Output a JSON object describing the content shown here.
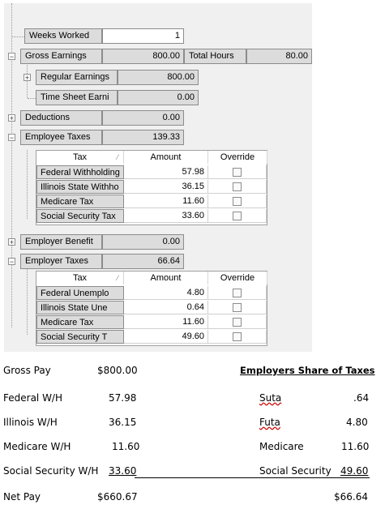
{
  "tree": {
    "weeks_worked": {
      "label": "Weeks Worked",
      "value": "1"
    },
    "gross_earnings": {
      "label": "Gross Earnings",
      "value": "800.00",
      "total_hours_label": "Total Hours",
      "total_hours_value": "80.00"
    },
    "regular_earnings": {
      "label": "Regular Earnings",
      "value": "800.00"
    },
    "time_sheet": {
      "label": "Time Sheet Earni",
      "value": "0.00"
    },
    "deductions": {
      "label": "Deductions",
      "value": "0.00"
    },
    "employee_taxes": {
      "label": "Employee Taxes",
      "value": "139.33"
    },
    "employee_grid": {
      "headers": [
        "Tax",
        "Amount",
        "Override"
      ],
      "rows": [
        {
          "name": "Federal Withholding",
          "amount": "57.98"
        },
        {
          "name": "Illinois State Withho",
          "amount": "36.15"
        },
        {
          "name": "Medicare Tax",
          "amount": "11.60"
        },
        {
          "name": "Social Security Tax",
          "amount": "33.60"
        }
      ]
    },
    "employer_benefit": {
      "label": "Employer Benefit",
      "value": "0.00"
    },
    "employer_taxes": {
      "label": "Employer Taxes",
      "value": "66.64"
    },
    "employer_grid": {
      "headers": [
        "Tax",
        "Amount",
        "Override"
      ],
      "rows": [
        {
          "name": "Federal Unemplo",
          "amount": "4.80"
        },
        {
          "name": "Illinois State Une",
          "amount": "0.64"
        },
        {
          "name": "Medicare Tax",
          "amount": "11.60"
        },
        {
          "name": "Social Security T",
          "amount": "49.60"
        }
      ]
    }
  },
  "summary": {
    "left": [
      {
        "label": "Gross Pay",
        "value": "$800.00"
      },
      {
        "label": "Federal W/H",
        "value": "57.98"
      },
      {
        "label": "Illinois W/H",
        "value": "36.15"
      },
      {
        "label": "Medicare W/H",
        "value": "11.60"
      },
      {
        "label": "Social Security W/H",
        "value": "33.60"
      },
      {
        "label": "Net Pay",
        "value": "$660.67"
      }
    ],
    "right_title": "Employers Share of Taxes",
    "right": [
      {
        "label": "Suta",
        "value": ".64"
      },
      {
        "label": "Futa",
        "value": "4.80"
      },
      {
        "label": "Medicare",
        "value": "11.60"
      },
      {
        "label": "Social Security",
        "value": "49.60"
      }
    ],
    "right_total": "$66.64"
  }
}
